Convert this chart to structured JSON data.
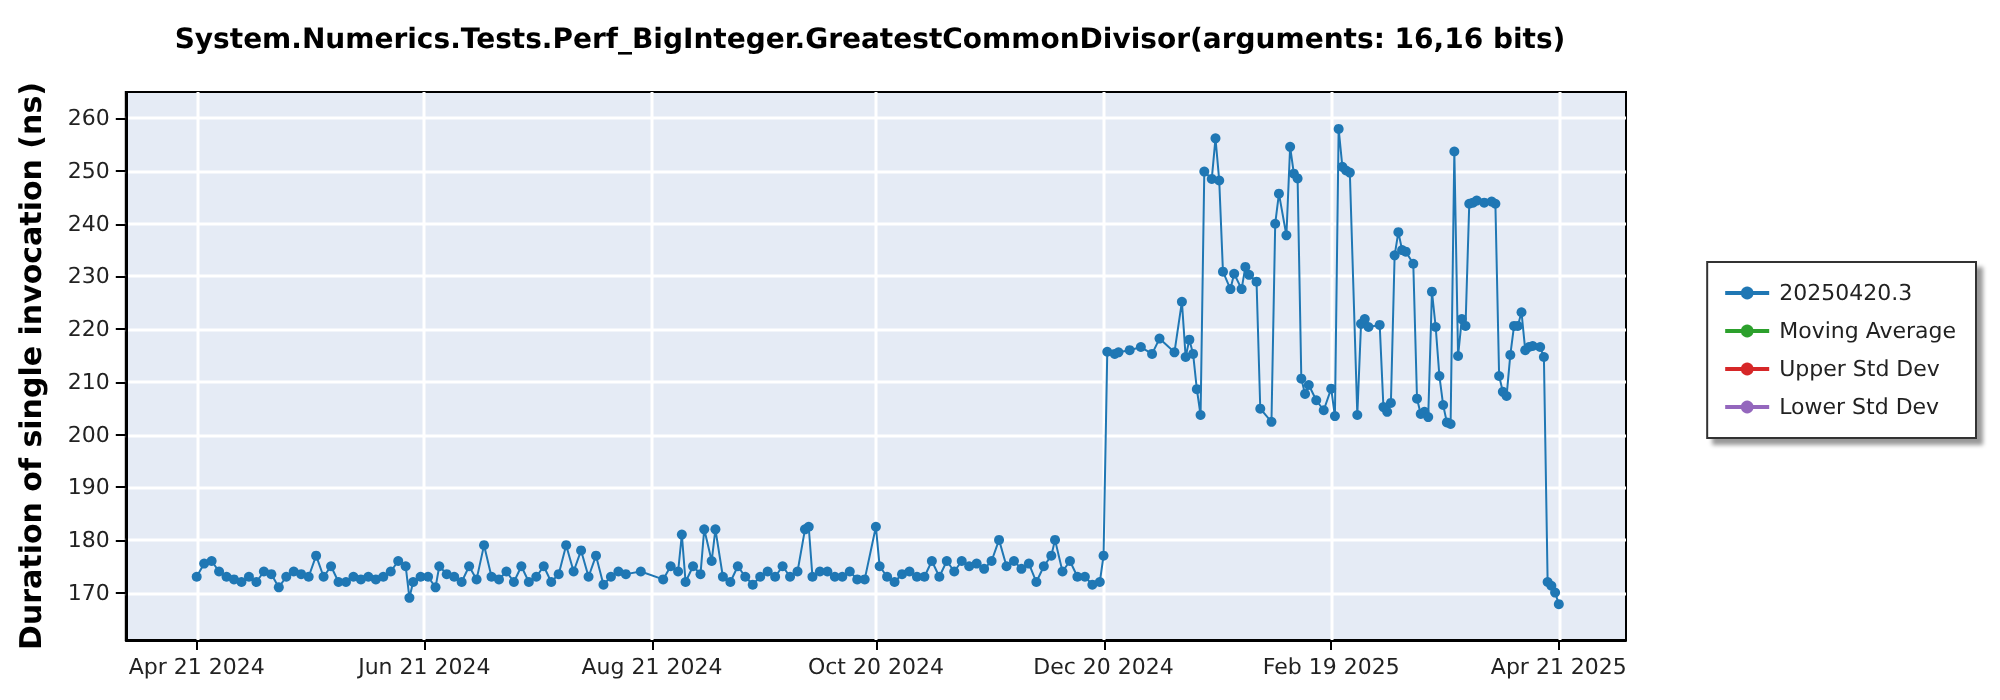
{
  "chart_data": {
    "type": "line",
    "title": "System.Numerics.Tests.Perf_BigInteger.GreatestCommonDivisor(arguments: 16,16 bits)",
    "ylabel": "Duration of single invocation (ns)",
    "xlim": [
      "2024-04-02",
      "2025-05-09"
    ],
    "xticks": [
      {
        "value": "2024-04-21",
        "label": "Apr 21 2024"
      },
      {
        "value": "2024-06-21",
        "label": "Jun 21 2024"
      },
      {
        "value": "2024-08-21",
        "label": "Aug 21 2024"
      },
      {
        "value": "2024-10-20",
        "label": "Oct 20 2024"
      },
      {
        "value": "2024-12-20",
        "label": "Dec 20 2024"
      },
      {
        "value": "2025-02-19",
        "label": "Feb 19 2025"
      },
      {
        "value": "2025-04-21",
        "label": "Apr 21 2025"
      }
    ],
    "ylim": [
      161,
      265
    ],
    "yticks": [
      170,
      180,
      190,
      200,
      210,
      220,
      230,
      240,
      250,
      260
    ],
    "grid": true,
    "legend": "right",
    "marker": "circle",
    "series": [
      {
        "name": "20250420.3",
        "color": "#1f77b4",
        "x": [
          "2024-04-21",
          "2024-04-23",
          "2024-04-25",
          "2024-04-27",
          "2024-04-29",
          "2024-05-01",
          "2024-05-03",
          "2024-05-05",
          "2024-05-07",
          "2024-05-09",
          "2024-05-11",
          "2024-05-13",
          "2024-05-15",
          "2024-05-17",
          "2024-05-19",
          "2024-05-21",
          "2024-05-23",
          "2024-05-25",
          "2024-05-27",
          "2024-05-29",
          "2024-05-31",
          "2024-06-02",
          "2024-06-04",
          "2024-06-06",
          "2024-06-08",
          "2024-06-10",
          "2024-06-12",
          "2024-06-14",
          "2024-06-16",
          "2024-06-17",
          "2024-06-18",
          "2024-06-20",
          "2024-06-22",
          "2024-06-24",
          "2024-06-25",
          "2024-06-27",
          "2024-06-29",
          "2024-07-01",
          "2024-07-03",
          "2024-07-05",
          "2024-07-07",
          "2024-07-09",
          "2024-07-11",
          "2024-07-13",
          "2024-07-15",
          "2024-07-17",
          "2024-07-19",
          "2024-07-21",
          "2024-07-23",
          "2024-07-25",
          "2024-07-27",
          "2024-07-29",
          "2024-07-31",
          "2024-08-02",
          "2024-08-04",
          "2024-08-06",
          "2024-08-08",
          "2024-08-10",
          "2024-08-12",
          "2024-08-14",
          "2024-08-18",
          "2024-08-24",
          "2024-08-26",
          "2024-08-28",
          "2024-08-29",
          "2024-08-30",
          "2024-09-01",
          "2024-09-03",
          "2024-09-04",
          "2024-09-06",
          "2024-09-07",
          "2024-09-09",
          "2024-09-11",
          "2024-09-13",
          "2024-09-15",
          "2024-09-17",
          "2024-09-19",
          "2024-09-21",
          "2024-09-23",
          "2024-09-25",
          "2024-09-27",
          "2024-09-29",
          "2024-10-01",
          "2024-10-02",
          "2024-10-03",
          "2024-10-05",
          "2024-10-07",
          "2024-10-09",
          "2024-10-11",
          "2024-10-13",
          "2024-10-15",
          "2024-10-17",
          "2024-10-20",
          "2024-10-21",
          "2024-10-23",
          "2024-10-25",
          "2024-10-27",
          "2024-10-29",
          "2024-10-31",
          "2024-11-02",
          "2024-11-04",
          "2024-11-06",
          "2024-11-08",
          "2024-11-10",
          "2024-11-12",
          "2024-11-14",
          "2024-11-16",
          "2024-11-18",
          "2024-11-20",
          "2024-11-22",
          "2024-11-24",
          "2024-11-26",
          "2024-11-28",
          "2024-11-30",
          "2024-12-02",
          "2024-12-04",
          "2024-12-06",
          "2024-12-07",
          "2024-12-09",
          "2024-12-11",
          "2024-12-13",
          "2024-12-15",
          "2024-12-17",
          "2024-12-19",
          "2024-12-20",
          "2024-12-21",
          "2024-12-23",
          "2024-12-24",
          "2024-12-27",
          "2024-12-30",
          "2025-01-02",
          "2025-01-04",
          "2025-01-08",
          "2025-01-10",
          "2025-01-11",
          "2025-01-12",
          "2025-01-13",
          "2025-01-14",
          "2025-01-15",
          "2025-01-16",
          "2025-01-18",
          "2025-01-19",
          "2025-01-20",
          "2025-01-21",
          "2025-01-23",
          "2025-01-24",
          "2025-01-26",
          "2025-01-27",
          "2025-01-28",
          "2025-01-30",
          "2025-01-31",
          "2025-02-03",
          "2025-02-04",
          "2025-02-05",
          "2025-02-07",
          "2025-02-08",
          "2025-02-09",
          "2025-02-10",
          "2025-02-11",
          "2025-02-12",
          "2025-02-13",
          "2025-02-15",
          "2025-02-17",
          "2025-02-19",
          "2025-02-20",
          "2025-02-21",
          "2025-02-22",
          "2025-02-23",
          "2025-02-24",
          "2025-02-26",
          "2025-02-27",
          "2025-02-28",
          "2025-03-01",
          "2025-03-04",
          "2025-03-05",
          "2025-03-06",
          "2025-03-07",
          "2025-03-08",
          "2025-03-09",
          "2025-03-10",
          "2025-03-11",
          "2025-03-13",
          "2025-03-14",
          "2025-03-15",
          "2025-03-16",
          "2025-03-17",
          "2025-03-18",
          "2025-03-19",
          "2025-03-20",
          "2025-03-21",
          "2025-03-22",
          "2025-03-23",
          "2025-03-24",
          "2025-03-25",
          "2025-03-26",
          "2025-03-27",
          "2025-03-28",
          "2025-03-29",
          "2025-03-30",
          "2025-04-01",
          "2025-04-03",
          "2025-04-04",
          "2025-04-05",
          "2025-04-06",
          "2025-04-07",
          "2025-04-08",
          "2025-04-09",
          "2025-04-10",
          "2025-04-11",
          "2025-04-12",
          "2025-04-13",
          "2025-04-14",
          "2025-04-16",
          "2025-04-17",
          "2025-04-18",
          "2025-04-19",
          "2025-04-20",
          "2025-04-21"
        ],
        "values": [
          173,
          175.5,
          176,
          174,
          173,
          172.5,
          172,
          173,
          172,
          174,
          173.5,
          171,
          173,
          174,
          173.5,
          173,
          177,
          173,
          175,
          172,
          172,
          173,
          172.5,
          173,
          172.5,
          173,
          174,
          176,
          175,
          169,
          172,
          173,
          173,
          171,
          175,
          173.5,
          173,
          172,
          175,
          172.5,
          179,
          173,
          172.5,
          174,
          172,
          175,
          172,
          173,
          175,
          172,
          173.5,
          179,
          174,
          178,
          173,
          177,
          171.5,
          173,
          174,
          173.5,
          174,
          172.5,
          175,
          174,
          181,
          172,
          175,
          173.5,
          182,
          176,
          182,
          173,
          172,
          175,
          173,
          171.5,
          173,
          174,
          173,
          175,
          173,
          174,
          182,
          182.5,
          173,
          174,
          174,
          173,
          173,
          174,
          172.5,
          172.5,
          182.5,
          175,
          173,
          172,
          173.5,
          174,
          173,
          173,
          176,
          173,
          176,
          174,
          176,
          175,
          175.5,
          174.5,
          176,
          180,
          175,
          176,
          174.5,
          175.5,
          172,
          175,
          177,
          180,
          174,
          176,
          173,
          173,
          171.5,
          172,
          177,
          215.7,
          215.3,
          215.6,
          216,
          216.6,
          215.3,
          218.2,
          215.6,
          225.2,
          214.7,
          218,
          215.3,
          208.6,
          203.7,
          249.9,
          248.5,
          256.2,
          248.2,
          230.9,
          227.6,
          230.5,
          227.6,
          231.8,
          230.3,
          229,
          204.9,
          202.4,
          240,
          245.7,
          237.8,
          254.6,
          249.5,
          248.6,
          210.6,
          207.7,
          209.4,
          206.5,
          204.6,
          208.7,
          203.5,
          258,
          250.8,
          250.1,
          249.7,
          203.7,
          221,
          221.9,
          220.4,
          220.8,
          205.2,
          204.3,
          206,
          234,
          238.4,
          235,
          234.7,
          232.4,
          206.8,
          203.9,
          204.3,
          203.3,
          227.1,
          220.4,
          211.1,
          205.6,
          202.3,
          202,
          253.7,
          214.9,
          221.9,
          220.6,
          243.8,
          244,
          244.4,
          244,
          244.2,
          243.8,
          211.1,
          208.1,
          207.3,
          215.1,
          220.6,
          220.6,
          223.2,
          216,
          216.6,
          216.8,
          216.6,
          214.7,
          172,
          171.3,
          170,
          167.8
        ]
      },
      {
        "name": "Moving Average",
        "color": "#2ca02c"
      },
      {
        "name": "Upper Std Dev",
        "color": "#d62728"
      },
      {
        "name": "Lower Std Dev",
        "color": "#9467bd"
      }
    ]
  }
}
